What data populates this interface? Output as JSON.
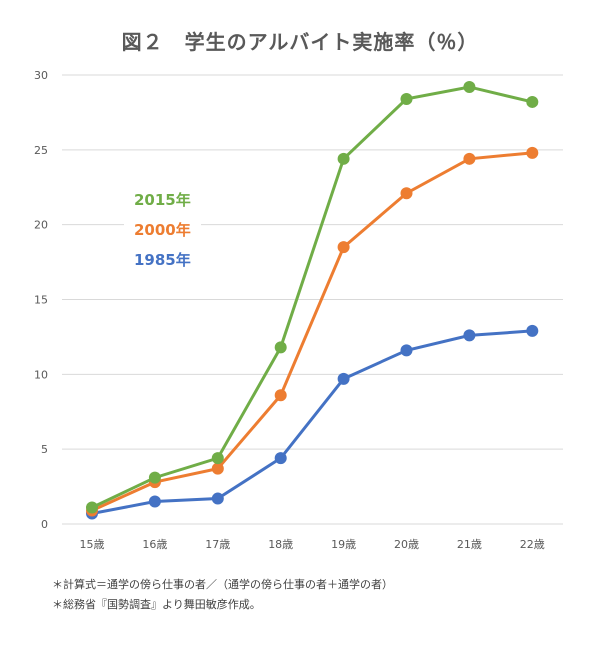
{
  "chart_data": {
    "type": "line",
    "title": "図２　学生のアルバイト実施率（％）",
    "categories": [
      "15歳",
      "16歳",
      "17歳",
      "18歳",
      "19歳",
      "20歳",
      "21歳",
      "22歳"
    ],
    "ylim": [
      0,
      30
    ],
    "yticks": [
      0,
      5,
      10,
      15,
      20,
      25,
      30
    ],
    "grid": true,
    "legend_placement": "left",
    "series": [
      {
        "name": "2015年",
        "color": "#70AD47",
        "values": [
          1.1,
          3.1,
          4.4,
          11.8,
          24.4,
          28.4,
          29.2,
          28.2
        ]
      },
      {
        "name": "2000年",
        "color": "#ED7D31",
        "values": [
          0.9,
          2.8,
          3.7,
          8.6,
          18.5,
          22.1,
          24.4,
          24.8
        ]
      },
      {
        "name": "1985年",
        "color": "#4472C4",
        "values": [
          0.7,
          1.5,
          1.7,
          4.4,
          9.7,
          11.6,
          12.6,
          12.9
        ]
      }
    ],
    "notes": [
      "＊計算式＝通学の傍ら仕事の者／（通学の傍ら仕事の者＋通学の者）",
      "＊総務省『国勢調査』より舞田敏彦作成。"
    ]
  }
}
